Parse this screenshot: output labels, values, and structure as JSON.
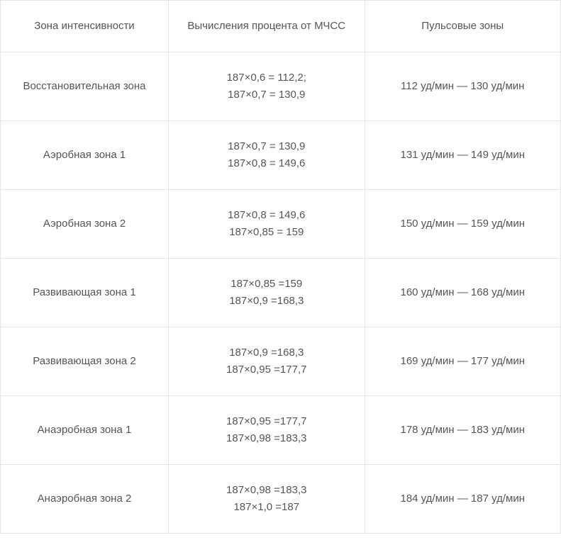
{
  "table": {
    "columns": [
      "Зона интенсивности",
      "Вычисления процента от МЧСС",
      "Пульсовые зоны"
    ],
    "rows": [
      {
        "zone": "Восстановительная зона",
        "calc_line1": "187×0,6 = 112,2;",
        "calc_line2": "187×0,7 = 130,9",
        "pulse": "112 уд/мин — 130 уд/мин"
      },
      {
        "zone": "Аэробная зона 1",
        "calc_line1": "187×0,7 = 130,9",
        "calc_line2": "187×0,8 = 149,6",
        "pulse": "131 уд/мин — 149 уд/мин"
      },
      {
        "zone": "Аэробная зона 2",
        "calc_line1": "187×0,8 = 149,6",
        "calc_line2": "187×0,85 = 159",
        "pulse": "150 уд/мин — 159 уд/мин"
      },
      {
        "zone": "Развивающая зона 1",
        "calc_line1": "187×0,85 =159",
        "calc_line2": "187×0,9 =168,3",
        "pulse": "160 уд/мин — 168 уд/мин"
      },
      {
        "zone": "Развивающая зона 2",
        "calc_line1": "187×0,9 =168,3",
        "calc_line2": "187×0,95 =177,7",
        "pulse": "169 уд/мин — 177 уд/мин"
      },
      {
        "zone": "Анаэробная зона 1",
        "calc_line1": "187×0,95 =177,7",
        "calc_line2": "187×0,98 =183,3",
        "pulse": "178 уд/мин — 183 уд/мин"
      },
      {
        "zone": "Анаэробная зона 2",
        "calc_line1": "187×0,98 =183,3",
        "calc_line2": "187×1,0 =187",
        "pulse": "184 уд/мин — 187 уд/мин"
      }
    ],
    "colors": {
      "border": "#e5e5e5",
      "text": "#555555",
      "background": "#ffffff"
    },
    "font_size": 15
  }
}
